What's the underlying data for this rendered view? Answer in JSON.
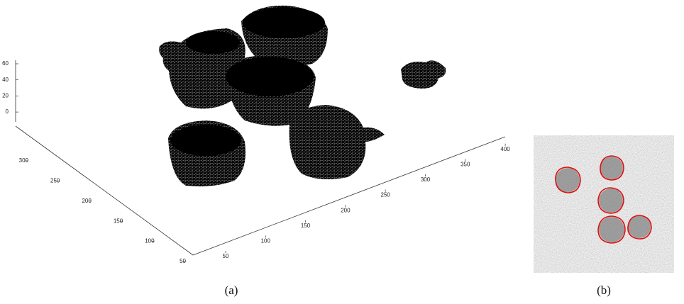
{
  "figure_a": {
    "z_ticks": [
      60,
      40,
      20,
      0
    ],
    "y_ticks": [
      300,
      250,
      200,
      150,
      100,
      50
    ],
    "x_ticks": [
      50,
      100,
      150,
      200,
      250,
      300,
      350,
      400
    ],
    "caption": "(a)"
  },
  "figure_b": {
    "caption": "(b)"
  }
}
